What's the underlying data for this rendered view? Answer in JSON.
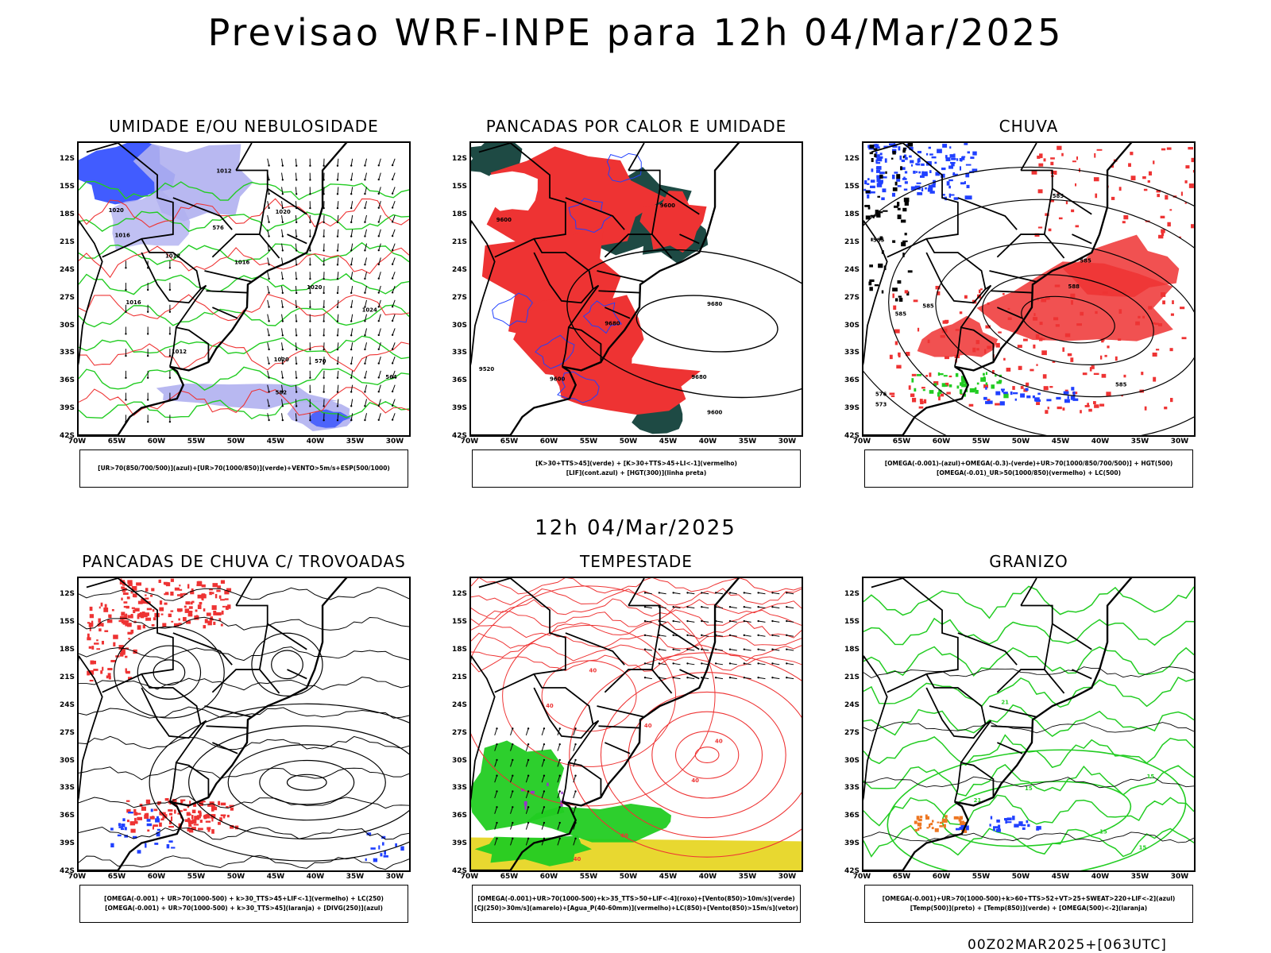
{
  "title": "Previsao WRF-INPE  para 12h 04/Mar/2025",
  "subtitle": "12h 04/Mar/2025",
  "timestamp": "00Z02MAR2025+[063UTC]",
  "colors": {
    "blue": "#2040ff",
    "light_blue": "#b0b0f0",
    "red": "#ee3333",
    "green": "#22cc22",
    "dark_teal": "#1e4a44",
    "yellow": "#e8d830",
    "purple": "#9933cc",
    "orange": "#ee7722",
    "black": "#000000"
  },
  "chart_data": [
    {
      "type": "heatmap",
      "title": "UMIDADE E/OU NEBULOSIDADE",
      "legend": [
        "[UR>70(850/700/500)](azul)+[UR>70(1000/850)](verde)+VENTO>5m/s+ESP(500/1000)"
      ],
      "x_ticks": [
        "70W",
        "65W",
        "60W",
        "55W",
        "50W",
        "45W",
        "40W",
        "35W",
        "30W"
      ],
      "y_ticks": [
        "12S",
        "15S",
        "18S",
        "21S",
        "24S",
        "27S",
        "30S",
        "33S",
        "36S",
        "39S",
        "42S"
      ],
      "xlim": [
        -70,
        -28
      ],
      "ylim": [
        -42,
        -10
      ],
      "contour_labels": [
        "1012",
        "1020",
        "1016",
        "1012",
        "1016",
        "1020",
        "1016",
        "1012",
        "1020",
        "1024",
        "1020",
        "576",
        "570",
        "564",
        "582"
      ]
    },
    {
      "type": "heatmap",
      "title": "PANCADAS POR CALOR E UMIDADE",
      "legend": [
        "[K>30+TTS>45](verde) + [K>30+TTS>45+LI<-1](vermelho)",
        "[LIF](cont.azul) + [HGT(300)](linha preta)"
      ],
      "x_ticks": [
        "70W",
        "65W",
        "60W",
        "55W",
        "50W",
        "45W",
        "40W",
        "35W",
        "30W"
      ],
      "y_ticks": [
        "12S",
        "15S",
        "18S",
        "21S",
        "24S",
        "27S",
        "30S",
        "33S",
        "36S",
        "39S",
        "42S"
      ],
      "xlim": [
        -70,
        -28
      ],
      "ylim": [
        -42,
        -10
      ],
      "contour_labels": [
        "9600",
        "9600",
        "9680",
        "9680",
        "9680",
        "9600",
        "9520",
        "9600"
      ]
    },
    {
      "type": "heatmap",
      "title": "CHUVA",
      "legend": [
        "[OMEGA(-0.001)-(azul)+OMEGA(-0.3)-(verde)+UR>70(1000/850/700/500)] + HGT(500)",
        "[OMEGA(-0.01)_UR>50(1000/850)(vermelho) + LC(500)"
      ],
      "x_ticks": [
        "70W",
        "65W",
        "60W",
        "55W",
        "50W",
        "45W",
        "40W",
        "35W",
        "30W"
      ],
      "y_ticks": [
        "12S",
        "15S",
        "18S",
        "21S",
        "24S",
        "27S",
        "30S",
        "33S",
        "36S",
        "39S",
        "42S"
      ],
      "xlim": [
        -70,
        -28
      ],
      "ylim": [
        -42,
        -10
      ],
      "contour_labels": [
        "585",
        "585",
        "585",
        "585",
        "576",
        "573",
        "588",
        "585",
        "585"
      ]
    },
    {
      "type": "heatmap",
      "title": "PANCADAS DE CHUVA C/ TROVOADAS",
      "legend": [
        "[OMEGA(-0.001) + UR>70(1000-500) + k>30_TTS>45+LIF<-1](vermelho) + LC(250)",
        "[OMEGA(-0.001) + UR>70(1000-500) + k>30_TTS>45](laranja) + [DIVG(250)](azul)"
      ],
      "x_ticks": [
        "70W",
        "65W",
        "60W",
        "55W",
        "50W",
        "45W",
        "40W",
        "35W",
        "30W"
      ],
      "y_ticks": [
        "12S",
        "15S",
        "18S",
        "21S",
        "24S",
        "27S",
        "30S",
        "33S",
        "36S",
        "39S",
        "42S"
      ],
      "xlim": [
        -70,
        -28
      ],
      "ylim": [
        -42,
        -10
      ]
    },
    {
      "type": "heatmap",
      "title": "TEMPESTADE",
      "legend": [
        "[OMEGA(-0.001)+UR>70(1000-500)+k>35_TTS>50+LIF<-4](roxo)+[Vento(850)>10m/s](verde)",
        "[CJ(250)>30m/s](amarelo)+[Agua_P(40-60mm)](vermelho)+LC(850)+[Vento(850)>15m/s](vetor)"
      ],
      "x_ticks": [
        "70W",
        "65W",
        "60W",
        "55W",
        "50W",
        "45W",
        "40W",
        "35W",
        "30W"
      ],
      "y_ticks": [
        "12S",
        "15S",
        "18S",
        "21S",
        "24S",
        "27S",
        "30S",
        "33S",
        "36S",
        "39S",
        "42S"
      ],
      "xlim": [
        -70,
        -28
      ],
      "ylim": [
        -42,
        -10
      ],
      "contour_labels": [
        "40",
        "40",
        "40",
        "40",
        "40",
        "40",
        "40"
      ]
    },
    {
      "type": "heatmap",
      "title": "GRANIZO",
      "legend": [
        "[OMEGA(-0.001)+UR>70(1000-500)+k>60+TTS>52+VT>25+SWEAT>220+LIF<-2](azul)",
        "[Temp(500)](preto) + [Temp(850)](verde) + [OMEGA(500)<-2](laranja)"
      ],
      "x_ticks": [
        "70W",
        "65W",
        "60W",
        "55W",
        "50W",
        "45W",
        "40W",
        "35W",
        "30W"
      ],
      "y_ticks": [
        "12S",
        "15S",
        "18S",
        "21S",
        "24S",
        "27S",
        "30S",
        "33S",
        "36S",
        "39S",
        "42S"
      ],
      "xlim": [
        -70,
        -28
      ],
      "ylim": [
        -42,
        -10
      ],
      "contour_labels": [
        "21",
        "15",
        "15",
        "21",
        "15",
        "15"
      ]
    }
  ]
}
